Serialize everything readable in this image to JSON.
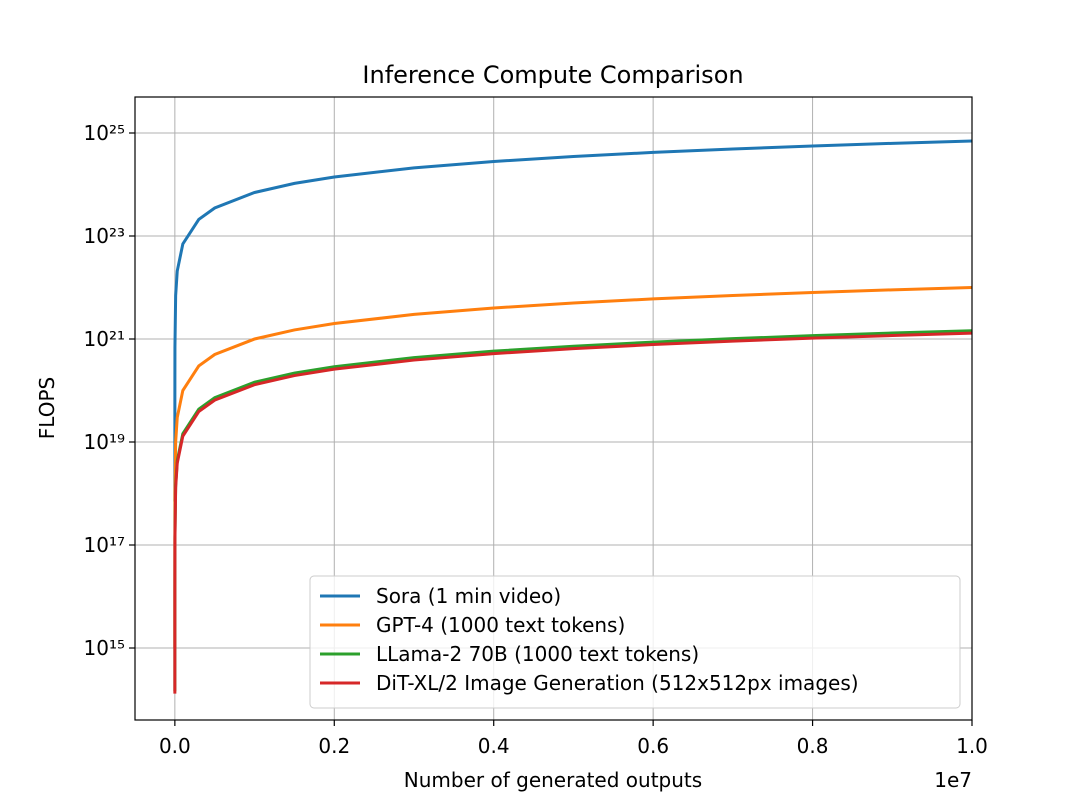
{
  "chart_data": {
    "type": "line",
    "title": "Inference Compute Comparison",
    "xlabel": "Number of generated outputs",
    "ylabel": "FLOPS",
    "x_offset_label": "1e7",
    "x": [
      1,
      100,
      1000,
      10000,
      30000,
      100000,
      300000,
      500000,
      1000000,
      1500000,
      2000000,
      3000000,
      4000000,
      5000000,
      6000000,
      7000000,
      8000000,
      9000000,
      10000000
    ],
    "series": [
      {
        "name": "Sora (1 min video)",
        "color": "#1f77b4",
        "values": [
          7e+17,
          7e+19,
          7e+20,
          7e+21,
          2.1e+22,
          7e+22,
          2.1e+23,
          3.5e+23,
          7e+23,
          1.05e+24,
          1.4e+24,
          2.1e+24,
          2.8e+24,
          3.5e+24,
          4.2e+24,
          4.9e+24,
          5.6e+24,
          6.3e+24,
          7e+24
        ]
      },
      {
        "name": "GPT-4 (1000 text tokens)",
        "color": "#ff7f0e",
        "values": [
          1000000000000000.0,
          1e+17,
          1e+18,
          1e+19,
          3e+19,
          1e+20,
          3e+20,
          5e+20,
          1e+21,
          1.5e+21,
          2e+21,
          3e+21,
          4e+21,
          5e+21,
          6e+21,
          7e+21,
          8e+21,
          9e+21,
          1e+22
        ]
      },
      {
        "name": "LLama-2 70B (1000 text tokens)",
        "color": "#2ca02c",
        "values": [
          145000000000000.0,
          1.45e+16,
          1.45e+17,
          1.45e+18,
          4.35e+18,
          1.45e+19,
          4.35e+19,
          7.25e+19,
          1.45e+20,
          2.175e+20,
          2.9e+20,
          4.35e+20,
          5.8e+20,
          7.25e+20,
          8.7e+20,
          1.015e+21,
          1.16e+21,
          1.305e+21,
          1.45e+21
        ]
      },
      {
        "name": "DiT-XL/2 Image Generation (512x512px images)",
        "color": "#d62728",
        "values": [
          130000000000000.0,
          1.3e+16,
          1.3e+17,
          1.3e+18,
          3.9e+18,
          1.3e+19,
          3.9e+19,
          6.5e+19,
          1.3e+20,
          1.95e+20,
          2.6e+20,
          3.9e+20,
          5.2e+20,
          6.5e+20,
          7.8e+20,
          9.1e+20,
          1.04e+21,
          1.17e+21,
          1.3e+21
        ]
      }
    ],
    "xlim": [
      -500000,
      10000000
    ],
    "xticks": [
      {
        "value": 0,
        "label": "0.0"
      },
      {
        "value": 2000000,
        "label": "0.2"
      },
      {
        "value": 4000000,
        "label": "0.4"
      },
      {
        "value": 6000000,
        "label": "0.6"
      },
      {
        "value": 8000000,
        "label": "0.8"
      },
      {
        "value": 10000000,
        "label": "1.0"
      }
    ],
    "ylim": [
      40000000000000.0,
      5e+25
    ],
    "yticks": [
      {
        "value": 1000000000000000.0,
        "label": "10¹⁵"
      },
      {
        "value": 1e+17,
        "label": "10¹⁷"
      },
      {
        "value": 1e+19,
        "label": "10¹⁹"
      },
      {
        "value": 1e+21,
        "label": "10²¹"
      },
      {
        "value": 1e+23,
        "label": "10²³"
      },
      {
        "value": 1e+25,
        "label": "10²⁵"
      }
    ],
    "log_y": true,
    "grid": true,
    "legend": "lower right"
  }
}
